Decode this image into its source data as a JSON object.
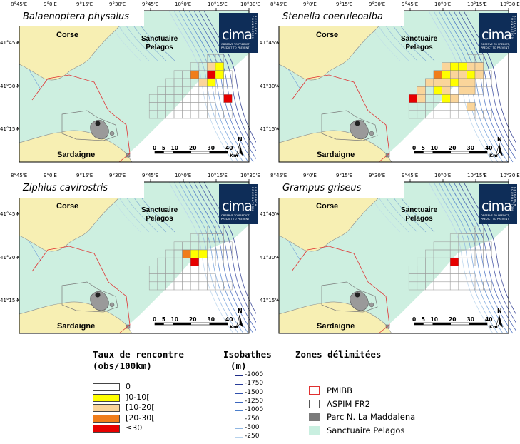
{
  "longitude_labels": [
    "8°45'E",
    "9°0'E",
    "9°15'E",
    "9°30'E",
    "9°45'E",
    "10°0'E",
    "10°15'E",
    "10°30'E"
  ],
  "latitude_labels": [
    "41°45'N",
    "41°30'N",
    "41°15'N"
  ],
  "map_labels": {
    "corse": "Corse",
    "sardaigne": "Sardaigne",
    "sanctuaire_line1": "Sanctuaire",
    "sanctuaire_line2": "Pelagos"
  },
  "logo": {
    "text": "cima",
    "vertical_text": "RESEARCH FOUNDATION",
    "tagline_line1": "OBSERVE TO PREDICT,",
    "tagline_line2": "PREDICT TO PREVENT"
  },
  "scale": {
    "labels": [
      "0",
      "5",
      "10",
      "20",
      "30",
      "40"
    ],
    "unit": "Km"
  },
  "north_label": "N",
  "panels": [
    {
      "species": "Balaenoptera physalus",
      "cells": [
        {
          "col": 4,
          "row": 0,
          "cls": "]10-20["
        },
        {
          "col": 5,
          "row": 0,
          "cls": "]0-10["
        },
        {
          "col": 2,
          "row": 1,
          "cls": "]20-30["
        },
        {
          "col": 4,
          "row": 1,
          "cls": "≤30"
        },
        {
          "col": 5,
          "row": 1,
          "cls": "]0-10["
        },
        {
          "col": 3,
          "row": 2,
          "cls": "]10-20["
        },
        {
          "col": 4,
          "row": 2,
          "cls": "]0-10["
        },
        {
          "col": 6,
          "row": 4,
          "cls": "≤30"
        }
      ]
    },
    {
      "species": "Stenella coeruleoalba",
      "cells": [
        {
          "col": 4,
          "row": 0,
          "cls": "]10-20["
        },
        {
          "col": 1,
          "row": 0,
          "cls": "]10-20["
        },
        {
          "col": 2,
          "row": 0,
          "cls": "]0-10["
        },
        {
          "col": 3,
          "row": 0,
          "cls": "]0-10["
        },
        {
          "col": 5,
          "row": 0,
          "cls": "]10-20["
        },
        {
          "col": 0,
          "row": 1,
          "cls": "]20-30["
        },
        {
          "col": 1,
          "row": 1,
          "cls": "]0-10["
        },
        {
          "col": 2,
          "row": 1,
          "cls": "]10-20["
        },
        {
          "col": 3,
          "row": 1,
          "cls": "]10-20["
        },
        {
          "col": 4,
          "row": 1,
          "cls": "]0-10["
        },
        {
          "col": 5,
          "row": 1,
          "cls": "]10-20["
        },
        {
          "col": -1,
          "row": 2,
          "cls": "]10-20["
        },
        {
          "col": 0,
          "row": 2,
          "cls": "]10-20["
        },
        {
          "col": 1,
          "row": 2,
          "cls": "]10-20["
        },
        {
          "col": 2,
          "row": 2,
          "cls": "]0-10["
        },
        {
          "col": 3,
          "row": 2,
          "cls": "]10-20["
        },
        {
          "col": 4,
          "row": 2,
          "cls": "]10-20["
        },
        {
          "col": -2,
          "row": 3,
          "cls": "]10-20["
        },
        {
          "col": 0,
          "row": 3,
          "cls": "]0-10["
        },
        {
          "col": 1,
          "row": 3,
          "cls": "]10-20["
        },
        {
          "col": 3,
          "row": 3,
          "cls": "]10-20["
        },
        {
          "col": 4,
          "row": 3,
          "cls": "]10-20["
        },
        {
          "col": -3,
          "row": 4,
          "cls": "≤30"
        },
        {
          "col": -2,
          "row": 4,
          "cls": "]10-20["
        },
        {
          "col": 1,
          "row": 4,
          "cls": "]0-10["
        },
        {
          "col": 2,
          "row": 4,
          "cls": "]10-20["
        },
        {
          "col": 4,
          "row": 5,
          "cls": "]10-20["
        }
      ]
    },
    {
      "species": "Ziphius cavirostris",
      "cells": [
        {
          "col": 1,
          "row": 2,
          "cls": "]20-30["
        },
        {
          "col": 2,
          "row": 2,
          "cls": "]0-10["
        },
        {
          "col": 3,
          "row": 2,
          "cls": "]0-10["
        },
        {
          "col": 2,
          "row": 3,
          "cls": "≤30"
        }
      ]
    },
    {
      "species": "Grampus griseus",
      "cells": [
        {
          "col": 2,
          "row": 3,
          "cls": "≤30"
        }
      ]
    }
  ],
  "legend": {
    "rate_title_line1": "Taux de rencontre",
    "rate_title_line2": "(obs/100km)",
    "rate_classes": [
      {
        "label": "0",
        "color": "#ffffff"
      },
      {
        "label": "]0-10[",
        "color": "#ffff00"
      },
      {
        "label": "[10-20[",
        "color": "#fad59a"
      },
      {
        "label": "[20-30[",
        "color": "#f07d1a"
      },
      {
        "label": "≤30",
        "color": "#e60000"
      }
    ],
    "isobath_title_line1": "Isobathes",
    "isobath_title_line2": "(m)",
    "isobaths": [
      {
        "label": "-2000",
        "color": "#1d2b86"
      },
      {
        "label": "-1750",
        "color": "#273b99"
      },
      {
        "label": "-1500",
        "color": "#2f4fad"
      },
      {
        "label": "-1250",
        "color": "#3a65be"
      },
      {
        "label": "-1000",
        "color": "#4b7fcc"
      },
      {
        "label": "-750",
        "color": "#6c9bd8"
      },
      {
        "label": "-500",
        "color": "#8fb6e2"
      },
      {
        "label": "-250",
        "color": "#b6d2ec"
      }
    ],
    "zones_title": "Zones délimitées",
    "zones": [
      {
        "label": "PMIBB",
        "color": "#e03030",
        "style": "outline"
      },
      {
        "label": "ASPIM FR2",
        "color": "#555555",
        "style": "outline"
      },
      {
        "label": "Parc N. La Maddalena",
        "color": "#7a7a7a",
        "style": "fill"
      },
      {
        "label": "Sanctuaire Pelagos",
        "color": "#c9efe0",
        "style": "fill"
      }
    ]
  },
  "colors": {
    "land": "#f7efb3",
    "sanctuary": "#cdefe0",
    "sea": "#ffffff",
    "pmibb": "#e03030",
    "aspim": "#7a7a7a"
  }
}
